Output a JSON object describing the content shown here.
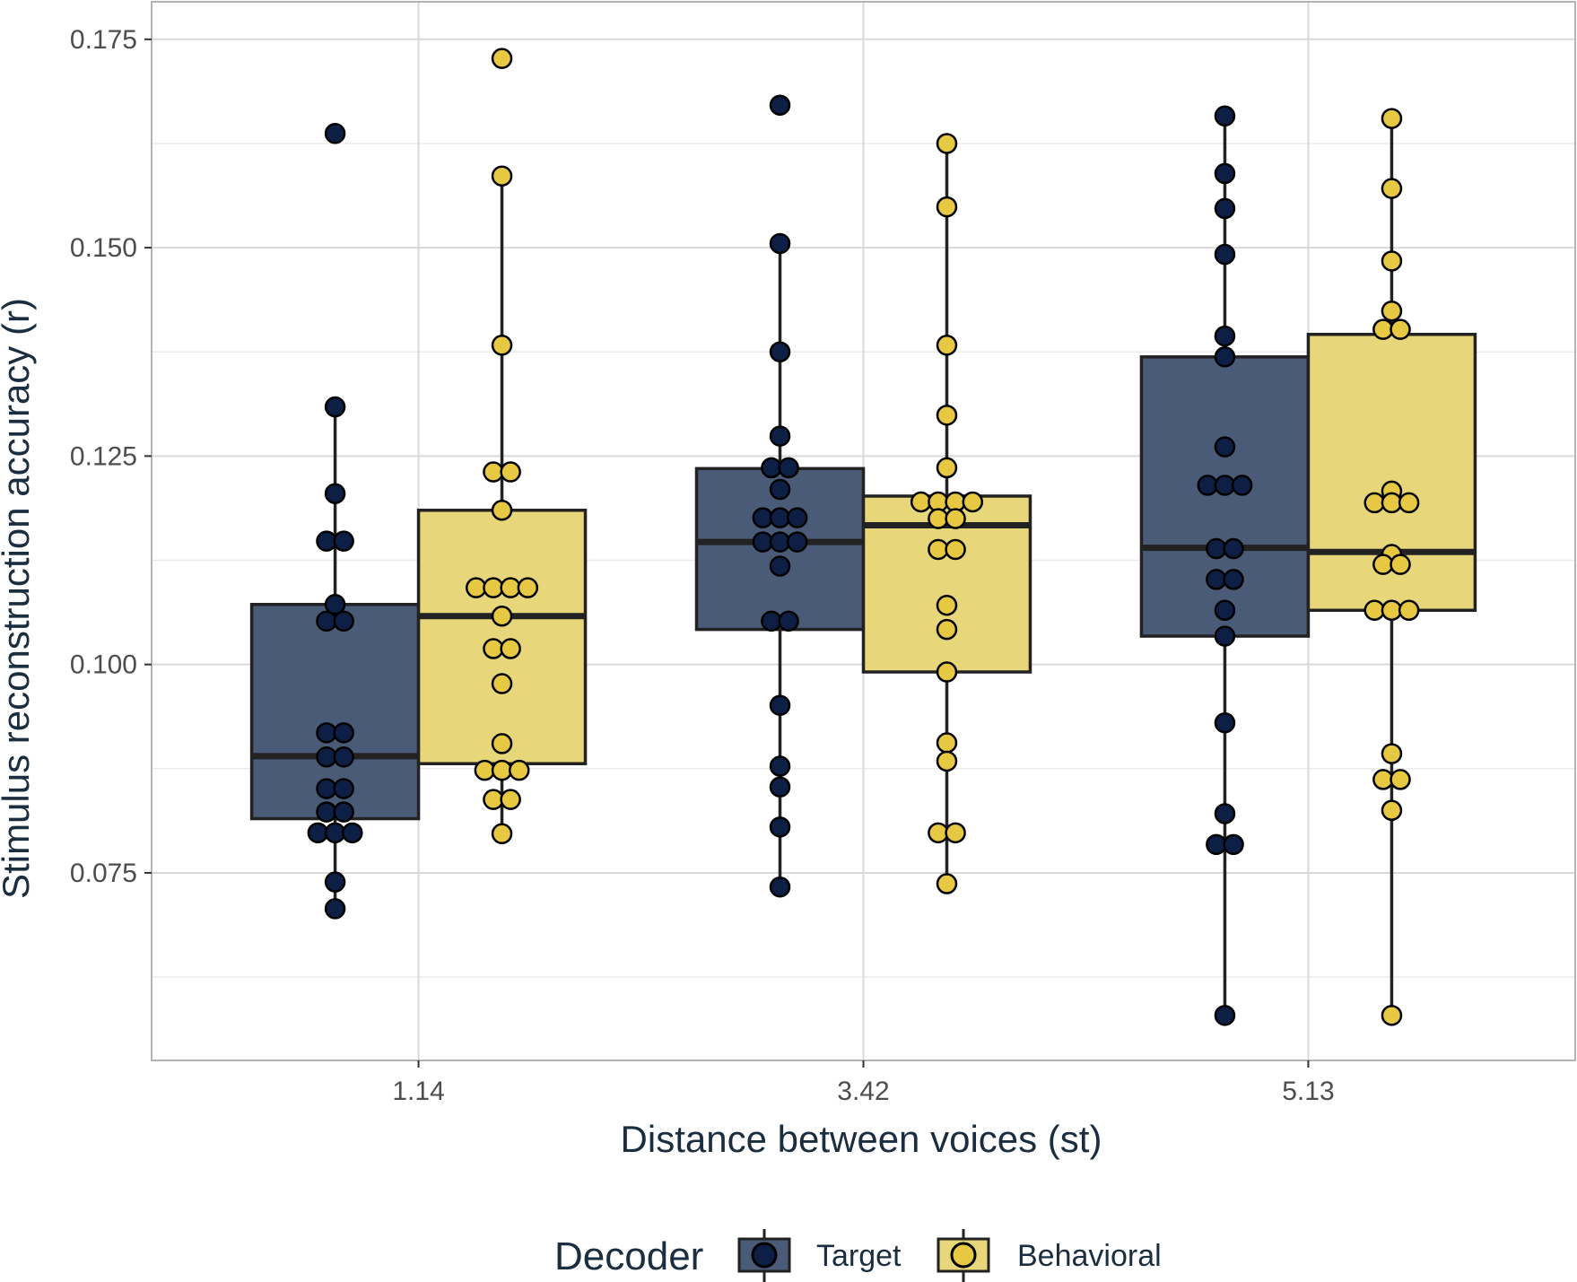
{
  "chart_data": {
    "type": "box",
    "title": "",
    "xlabel": "Distance between voices (st)",
    "ylabel": "Stimulus reconstruction accuracy (r)",
    "categories": [
      "1.14",
      "3.42",
      "5.13"
    ],
    "ylim": [
      0.0525,
      0.1795
    ],
    "yticks": [
      "0.075",
      "0.100",
      "0.125",
      "0.150",
      "0.175"
    ],
    "grid": true,
    "legend": {
      "title": "Decoder",
      "placement": "bottom",
      "entries": [
        "Target",
        "Behavioral"
      ]
    },
    "series": [
      {
        "name": "Target",
        "fill": "#4a5b78",
        "point_color": "#0d1f45",
        "boxes": [
          {
            "q1": 0.0815,
            "median": 0.089,
            "q3": 0.1072,
            "whisker_low": 0.0707,
            "whisker_high": 0.1309
          },
          {
            "q1": 0.1042,
            "median": 0.1147,
            "q3": 0.1235,
            "whisker_low": 0.0733,
            "whisker_high": 0.1505
          },
          {
            "q1": 0.1034,
            "median": 0.114,
            "q3": 0.1369,
            "whisker_low": 0.0579,
            "whisker_high": 0.1658
          }
        ],
        "points": [
          [
            0.1637,
            0.1309,
            0.1205,
            0.1148,
            0.1148,
            0.1072,
            0.1052,
            0.1052,
            0.0918,
            0.0918,
            0.0889,
            0.0889,
            0.0851,
            0.0851,
            0.0823,
            0.0823,
            0.0798,
            0.0798,
            0.0798,
            0.0739,
            0.0707
          ],
          [
            0.1671,
            0.1505,
            0.1375,
            0.1274,
            0.1236,
            0.1236,
            0.121,
            0.1176,
            0.1176,
            0.1176,
            0.1147,
            0.1147,
            0.1147,
            0.1118,
            0.1052,
            0.1052,
            0.0951,
            0.0878,
            0.0853,
            0.0805,
            0.0733
          ],
          [
            0.1658,
            0.1589,
            0.1547,
            0.1492,
            0.1394,
            0.1369,
            0.1261,
            0.1215,
            0.1215,
            0.1215,
            0.1139,
            0.1139,
            0.1102,
            0.1102,
            0.1065,
            0.1034,
            0.093,
            0.0821,
            0.0784,
            0.0784,
            0.0579
          ]
        ]
      },
      {
        "name": "Behavioral",
        "fill": "#e8d67a",
        "point_color": "#e6c843",
        "boxes": [
          {
            "q1": 0.0881,
            "median": 0.1058,
            "q3": 0.1185,
            "whisker_low": 0.0797,
            "whisker_high": 0.1586
          },
          {
            "q1": 0.0991,
            "median": 0.1167,
            "q3": 0.1202,
            "whisker_low": 0.0737,
            "whisker_high": 0.1625
          },
          {
            "q1": 0.1065,
            "median": 0.1135,
            "q3": 0.1396,
            "whisker_low": 0.0579,
            "whisker_high": 0.1655
          }
        ],
        "points": [
          [
            0.1727,
            0.1586,
            0.1383,
            0.1231,
            0.1231,
            0.1185,
            0.1092,
            0.1092,
            0.1092,
            0.1092,
            0.1058,
            0.1019,
            0.1019,
            0.0977,
            0.0905,
            0.0873,
            0.0873,
            0.0873,
            0.0838,
            0.0838,
            0.0797
          ],
          [
            0.1625,
            0.1549,
            0.1383,
            0.1299,
            0.1236,
            0.1195,
            0.1195,
            0.1195,
            0.1195,
            0.1175,
            0.1175,
            0.1138,
            0.1138,
            0.1071,
            0.1042,
            0.0991,
            0.0906,
            0.0884,
            0.0798,
            0.0798,
            0.0737
          ],
          [
            0.1655,
            0.1571,
            0.1484,
            0.1424,
            0.1402,
            0.1402,
            0.1208,
            0.1194,
            0.1194,
            0.1194,
            0.1132,
            0.112,
            0.112,
            0.1065,
            0.1065,
            0.1065,
            0.0893,
            0.0862,
            0.0862,
            0.0825,
            0.0579
          ]
        ]
      }
    ]
  }
}
